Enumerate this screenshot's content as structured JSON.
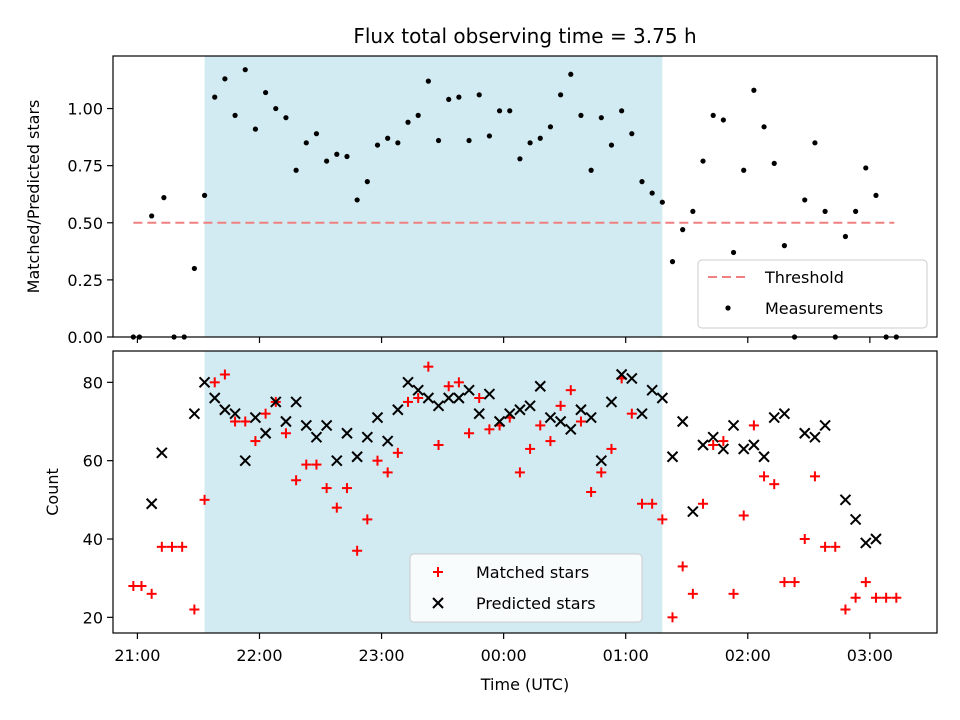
{
  "chart_data": [
    {
      "type": "scatter",
      "title": "Flux total observing time = 3.75 h",
      "ylabel": "Matched/Predicted stars",
      "xlabel": "",
      "ylim": [
        0,
        1.23
      ],
      "yticks": [
        0.0,
        0.25,
        0.5,
        0.75,
        1.0
      ],
      "ytick_labels": [
        "0.00",
        "0.25",
        "0.50",
        "0.75",
        "1.00"
      ],
      "xlim": [
        "20:48",
        "03:33"
      ],
      "xticks": [
        "21:00",
        "22:00",
        "23:00",
        "00:00",
        "01:00",
        "02:00",
        "03:00"
      ],
      "shaded_interval": {
        "start": "21:33",
        "end": "01:18",
        "color": "#add8e6"
      },
      "legend": {
        "position": "bottom-right",
        "entries": [
          "Threshold",
          "Measurements"
        ]
      },
      "threshold": {
        "name": "Threshold",
        "y": 0.5,
        "x_start": "20:58",
        "x_end": "03:12",
        "color": "#f08080",
        "style": "dashed"
      },
      "series": [
        {
          "name": "Measurements",
          "color": "#000000",
          "marker": "dot",
          "points": [
            [
              "20:58",
              0.0
            ],
            [
              "21:01",
              0.0
            ],
            [
              "21:07",
              0.53
            ],
            [
              "21:13",
              0.61
            ],
            [
              "21:18",
              0.0
            ],
            [
              "21:23",
              0.0
            ],
            [
              "21:28",
              0.3
            ],
            [
              "21:33",
              0.62
            ],
            [
              "21:38",
              1.05
            ],
            [
              "21:43",
              1.13
            ],
            [
              "21:48",
              0.97
            ],
            [
              "21:53",
              1.17
            ],
            [
              "21:58",
              0.91
            ],
            [
              "22:03",
              1.07
            ],
            [
              "22:08",
              1.0
            ],
            [
              "22:13",
              0.96
            ],
            [
              "22:18",
              0.73
            ],
            [
              "22:23",
              0.85
            ],
            [
              "22:28",
              0.89
            ],
            [
              "22:33",
              0.77
            ],
            [
              "22:38",
              0.8
            ],
            [
              "22:43",
              0.79
            ],
            [
              "22:48",
              0.6
            ],
            [
              "22:53",
              0.68
            ],
            [
              "22:58",
              0.84
            ],
            [
              "23:03",
              0.87
            ],
            [
              "23:08",
              0.85
            ],
            [
              "23:13",
              0.94
            ],
            [
              "23:18",
              0.97
            ],
            [
              "23:23",
              1.12
            ],
            [
              "23:28",
              0.86
            ],
            [
              "23:33",
              1.04
            ],
            [
              "23:38",
              1.05
            ],
            [
              "23:43",
              0.86
            ],
            [
              "23:48",
              1.06
            ],
            [
              "23:53",
              0.88
            ],
            [
              "23:58",
              0.99
            ],
            [
              "00:03",
              0.99
            ],
            [
              "00:08",
              0.78
            ],
            [
              "00:13",
              0.85
            ],
            [
              "00:18",
              0.87
            ],
            [
              "00:23",
              0.92
            ],
            [
              "00:28",
              1.06
            ],
            [
              "00:33",
              1.15
            ],
            [
              "00:38",
              0.97
            ],
            [
              "00:43",
              0.73
            ],
            [
              "00:48",
              0.96
            ],
            [
              "00:53",
              0.84
            ],
            [
              "00:58",
              0.99
            ],
            [
              "01:03",
              0.89
            ],
            [
              "01:08",
              0.68
            ],
            [
              "01:13",
              0.63
            ],
            [
              "01:18",
              0.59
            ],
            [
              "01:23",
              0.33
            ],
            [
              "01:28",
              0.47
            ],
            [
              "01:33",
              0.55
            ],
            [
              "01:38",
              0.77
            ],
            [
              "01:43",
              0.97
            ],
            [
              "01:48",
              0.95
            ],
            [
              "01:53",
              0.37
            ],
            [
              "01:58",
              0.73
            ],
            [
              "02:03",
              1.08
            ],
            [
              "02:08",
              0.92
            ],
            [
              "02:13",
              0.76
            ],
            [
              "02:18",
              0.4
            ],
            [
              "02:23",
              0.0
            ],
            [
              "02:28",
              0.6
            ],
            [
              "02:33",
              0.85
            ],
            [
              "02:38",
              0.55
            ],
            [
              "02:43",
              0.0
            ],
            [
              "02:48",
              0.44
            ],
            [
              "02:53",
              0.55
            ],
            [
              "02:58",
              0.74
            ],
            [
              "03:03",
              0.62
            ],
            [
              "03:08",
              0.0
            ],
            [
              "03:13",
              0.0
            ]
          ]
        }
      ]
    },
    {
      "type": "scatter",
      "title": "",
      "ylabel": "Count",
      "xlabel": "Time (UTC)",
      "ylim": [
        16,
        88
      ],
      "yticks": [
        20,
        40,
        60,
        80
      ],
      "ytick_labels": [
        "20",
        "40",
        "60",
        "80"
      ],
      "xlim": [
        "20:48",
        "03:33"
      ],
      "xticks": [
        "21:00",
        "22:00",
        "23:00",
        "00:00",
        "01:00",
        "02:00",
        "03:00"
      ],
      "shaded_interval": {
        "start": "21:33",
        "end": "01:18",
        "color": "#add8e6"
      },
      "legend": {
        "position": "bottom-center",
        "entries": [
          "Matched stars",
          "Predicted stars"
        ]
      },
      "series": [
        {
          "name": "Matched stars",
          "color": "#ff0000",
          "marker": "plus",
          "points": [
            [
              "20:58",
              28
            ],
            [
              "21:02",
              28
            ],
            [
              "21:07",
              26
            ],
            [
              "21:12",
              38
            ],
            [
              "21:17",
              38
            ],
            [
              "21:22",
              38
            ],
            [
              "21:28",
              22
            ],
            [
              "21:33",
              50
            ],
            [
              "21:38",
              80
            ],
            [
              "21:43",
              82
            ],
            [
              "21:48",
              70
            ],
            [
              "21:53",
              70
            ],
            [
              "21:58",
              65
            ],
            [
              "22:03",
              72
            ],
            [
              "22:08",
              75
            ],
            [
              "22:13",
              67
            ],
            [
              "22:18",
              55
            ],
            [
              "22:23",
              59
            ],
            [
              "22:28",
              59
            ],
            [
              "22:33",
              53
            ],
            [
              "22:38",
              48
            ],
            [
              "22:43",
              53
            ],
            [
              "22:48",
              37
            ],
            [
              "22:53",
              45
            ],
            [
              "22:58",
              60
            ],
            [
              "23:03",
              57
            ],
            [
              "23:08",
              62
            ],
            [
              "23:13",
              75
            ],
            [
              "23:18",
              76
            ],
            [
              "23:23",
              84
            ],
            [
              "23:28",
              64
            ],
            [
              "23:33",
              79
            ],
            [
              "23:38",
              80
            ],
            [
              "23:43",
              67
            ],
            [
              "23:48",
              76
            ],
            [
              "23:53",
              68
            ],
            [
              "23:58",
              69
            ],
            [
              "00:03",
              71
            ],
            [
              "00:08",
              57
            ],
            [
              "00:13",
              63
            ],
            [
              "00:18",
              69
            ],
            [
              "00:23",
              65
            ],
            [
              "00:28",
              74
            ],
            [
              "00:33",
              78
            ],
            [
              "00:38",
              70
            ],
            [
              "00:43",
              52
            ],
            [
              "00:48",
              57
            ],
            [
              "00:53",
              63
            ],
            [
              "00:58",
              81
            ],
            [
              "01:03",
              72
            ],
            [
              "01:08",
              49
            ],
            [
              "01:13",
              49
            ],
            [
              "01:18",
              45
            ],
            [
              "01:23",
              20
            ],
            [
              "01:28",
              33
            ],
            [
              "01:33",
              26
            ],
            [
              "01:38",
              49
            ],
            [
              "01:43",
              64
            ],
            [
              "01:48",
              65
            ],
            [
              "01:53",
              26
            ],
            [
              "01:58",
              46
            ],
            [
              "02:03",
              69
            ],
            [
              "02:08",
              56
            ],
            [
              "02:13",
              54
            ],
            [
              "02:18",
              29
            ],
            [
              "02:23",
              29
            ],
            [
              "02:28",
              40
            ],
            [
              "02:33",
              56
            ],
            [
              "02:38",
              38
            ],
            [
              "02:43",
              38
            ],
            [
              "02:48",
              22
            ],
            [
              "02:53",
              25
            ],
            [
              "02:58",
              29
            ],
            [
              "03:03",
              25
            ],
            [
              "03:08",
              25
            ],
            [
              "03:13",
              25
            ]
          ]
        },
        {
          "name": "Predicted stars",
          "color": "#000000",
          "marker": "x",
          "points": [
            [
              "21:07",
              49
            ],
            [
              "21:12",
              62
            ],
            [
              "21:28",
              72
            ],
            [
              "21:33",
              80
            ],
            [
              "21:38",
              76
            ],
            [
              "21:43",
              73
            ],
            [
              "21:48",
              72
            ],
            [
              "21:53",
              60
            ],
            [
              "21:58",
              71
            ],
            [
              "22:03",
              67
            ],
            [
              "22:08",
              75
            ],
            [
              "22:13",
              70
            ],
            [
              "22:18",
              75
            ],
            [
              "22:23",
              69
            ],
            [
              "22:28",
              66
            ],
            [
              "22:33",
              69
            ],
            [
              "22:38",
              60
            ],
            [
              "22:43",
              67
            ],
            [
              "22:48",
              61
            ],
            [
              "22:53",
              66
            ],
            [
              "22:58",
              71
            ],
            [
              "23:03",
              65
            ],
            [
              "23:08",
              73
            ],
            [
              "23:13",
              80
            ],
            [
              "23:18",
              78
            ],
            [
              "23:23",
              76
            ],
            [
              "23:28",
              74
            ],
            [
              "23:33",
              76
            ],
            [
              "23:38",
              76
            ],
            [
              "23:43",
              78
            ],
            [
              "23:48",
              72
            ],
            [
              "23:53",
              77
            ],
            [
              "23:58",
              70
            ],
            [
              "00:03",
              72
            ],
            [
              "00:08",
              73
            ],
            [
              "00:13",
              74
            ],
            [
              "00:18",
              79
            ],
            [
              "00:23",
              71
            ],
            [
              "00:28",
              70
            ],
            [
              "00:33",
              68
            ],
            [
              "00:38",
              73
            ],
            [
              "00:43",
              71
            ],
            [
              "00:48",
              60
            ],
            [
              "00:53",
              75
            ],
            [
              "00:58",
              82
            ],
            [
              "01:03",
              81
            ],
            [
              "01:08",
              72
            ],
            [
              "01:13",
              78
            ],
            [
              "01:18",
              76
            ],
            [
              "01:23",
              61
            ],
            [
              "01:28",
              70
            ],
            [
              "01:33",
              47
            ],
            [
              "01:38",
              64
            ],
            [
              "01:43",
              66
            ],
            [
              "01:48",
              63
            ],
            [
              "01:53",
              69
            ],
            [
              "01:58",
              63
            ],
            [
              "02:03",
              64
            ],
            [
              "02:08",
              61
            ],
            [
              "02:13",
              71
            ],
            [
              "02:18",
              72
            ],
            [
              "02:28",
              67
            ],
            [
              "02:33",
              66
            ],
            [
              "02:38",
              69
            ],
            [
              "02:48",
              50
            ],
            [
              "02:53",
              45
            ],
            [
              "02:58",
              39
            ],
            [
              "03:03",
              40
            ]
          ]
        }
      ]
    }
  ]
}
